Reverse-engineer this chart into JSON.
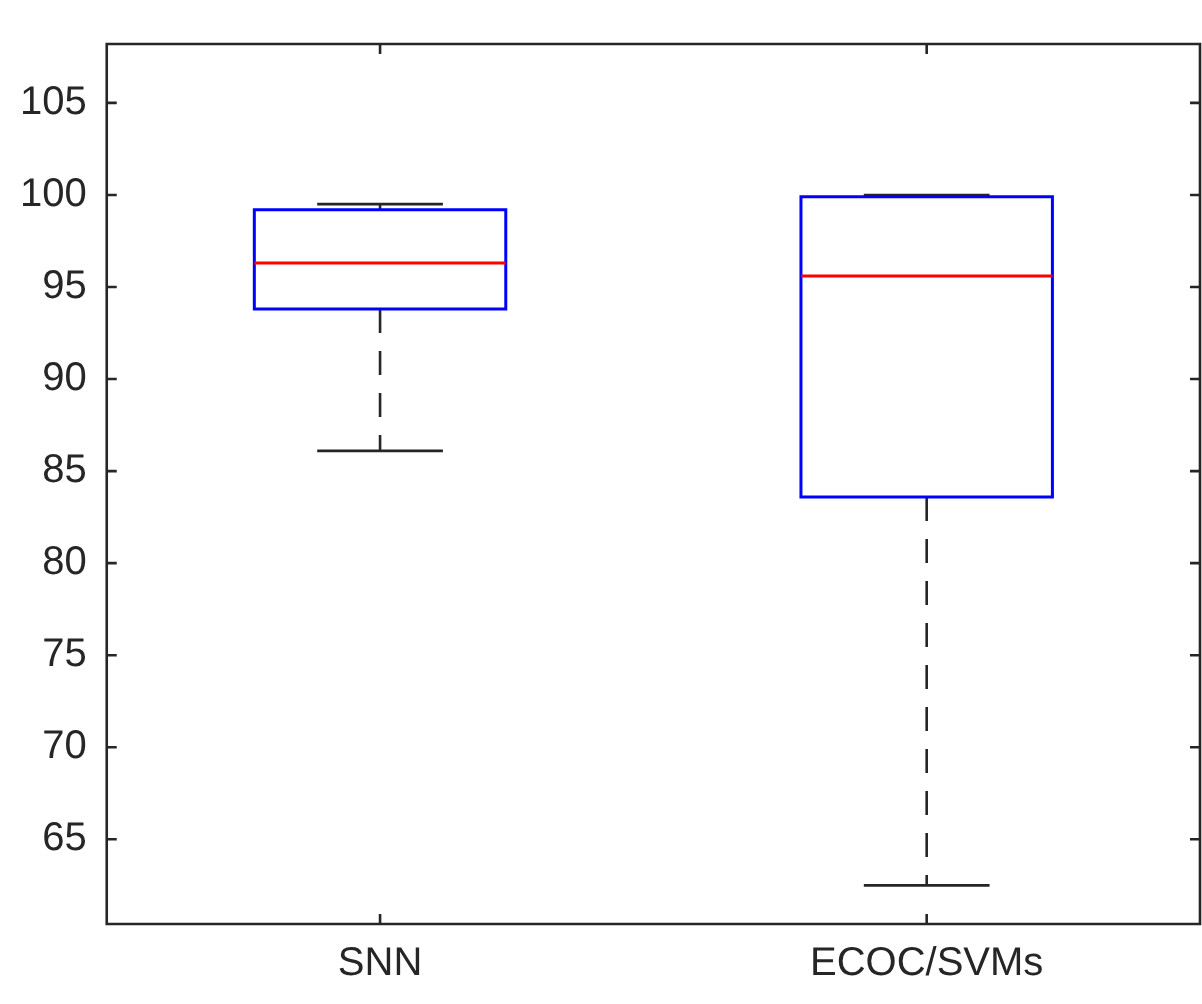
{
  "chart_data": {
    "type": "box",
    "categories": [
      "SNN",
      "ECOC/SVMs"
    ],
    "color": "#0000ff",
    "boxes": [
      {
        "low": 86.1,
        "q1": 93.8,
        "median": 96.3,
        "q3": 99.2,
        "high": 99.5
      },
      {
        "low": 62.5,
        "q1": 83.6,
        "median": 95.6,
        "q3": 99.9,
        "high": 100.0
      }
    ],
    "ylim": [
      60.4,
      108.2
    ],
    "yticks": [
      65,
      70,
      75,
      80,
      85,
      90,
      95,
      100,
      105
    ]
  }
}
